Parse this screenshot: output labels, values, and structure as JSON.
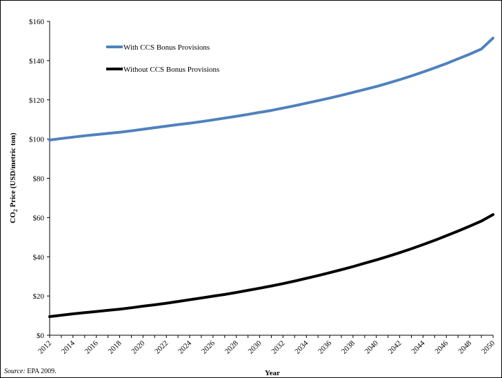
{
  "chart_data": {
    "type": "line",
    "x": [
      2012,
      2013,
      2014,
      2015,
      2016,
      2017,
      2018,
      2019,
      2020,
      2021,
      2022,
      2023,
      2024,
      2025,
      2026,
      2027,
      2028,
      2029,
      2030,
      2031,
      2032,
      2033,
      2034,
      2035,
      2036,
      2037,
      2038,
      2039,
      2040,
      2041,
      2042,
      2043,
      2044,
      2045,
      2046,
      2047,
      2048,
      2049,
      2050
    ],
    "x_tick_labels": [
      "2012",
      "2014",
      "2016",
      "2018",
      "2020",
      "2022",
      "2024",
      "2026",
      "2028",
      "2030",
      "2032",
      "2034",
      "2036",
      "2038",
      "2040",
      "2042",
      "2044",
      "2046",
      "2048",
      "2050"
    ],
    "y_tick_labels": [
      "$0",
      "$20",
      "$40",
      "$60",
      "$80",
      "$100",
      "$120",
      "$140",
      "$160"
    ],
    "ylim": [
      0,
      160
    ],
    "xlim": [
      2012,
      2050
    ],
    "xlabel": "Year",
    "ylabel_main": "CO",
    "ylabel_sub": "2",
    "ylabel_rest": " Price (USD/metric ton)",
    "grid": false,
    "legend_position": "top-left",
    "series": [
      {
        "name": "With CCS Bonus Provisions",
        "color": "#4F81BD",
        "values": [
          99.5,
          100.3,
          101.0,
          101.7,
          102.3,
          102.9,
          103.5,
          104.2,
          105.0,
          105.8,
          106.6,
          107.4,
          108.1,
          108.9,
          109.8,
          110.7,
          111.6,
          112.6,
          113.6,
          114.6,
          115.8,
          117.0,
          118.3,
          119.6,
          120.9,
          122.3,
          123.8,
          125.3,
          126.8,
          128.5,
          130.3,
          132.2,
          134.2,
          136.3,
          138.5,
          140.9,
          143.3,
          145.9,
          151.5
        ]
      },
      {
        "name": "Without CCS Bonus Provisions",
        "color": "#000000",
        "values": [
          9.5,
          10.2,
          10.9,
          11.5,
          12.1,
          12.7,
          13.3,
          14.0,
          14.8,
          15.5,
          16.3,
          17.2,
          18.1,
          19.0,
          19.9,
          20.8,
          21.8,
          22.9,
          24.0,
          25.1,
          26.3,
          27.6,
          29.0,
          30.4,
          31.9,
          33.4,
          35.0,
          36.7,
          38.4,
          40.2,
          42.1,
          44.1,
          46.2,
          48.4,
          50.7,
          53.1,
          55.6,
          58.2,
          61.5
        ]
      }
    ]
  },
  "source": {
    "label": "Source:",
    "text": "EPA 2009."
  }
}
